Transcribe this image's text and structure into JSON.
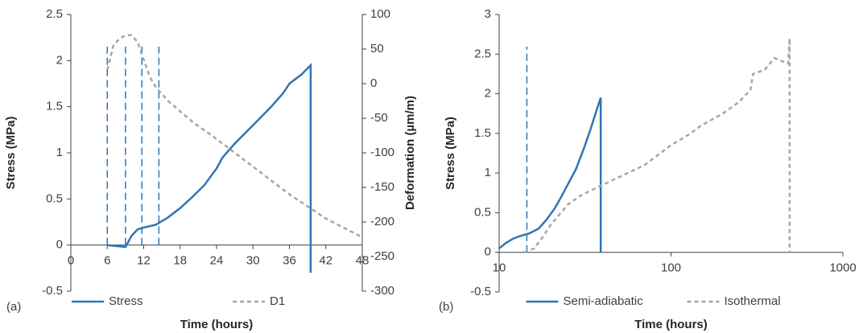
{
  "chart_data": [
    {
      "type": "line",
      "panel_label": "(a)",
      "x_label": "Time (hours)",
      "y_label": "Stress (MPa)",
      "y2_label": "Deformation (µm/m)",
      "xlim": [
        0,
        48
      ],
      "xticks": [
        0,
        6,
        12,
        18,
        24,
        30,
        36,
        42,
        48
      ],
      "ylim": [
        -0.5,
        2.5
      ],
      "yticks": [
        -0.5,
        0,
        0.5,
        1,
        1.5,
        2,
        2.5
      ],
      "y2lim": [
        -300,
        100
      ],
      "y2ticks": [
        -300,
        -250,
        -200,
        -150,
        -100,
        -50,
        0,
        50,
        100
      ],
      "legend": "bottom",
      "vlines": [
        6,
        9,
        11.7,
        14.5
      ],
      "vline_color": "#2e75b6",
      "series": [
        {
          "name": "Stress",
          "color": "#2e75b6",
          "style": "solid",
          "x": [
            6,
            9,
            10,
            11,
            12,
            14,
            16,
            18,
            20,
            22,
            24,
            25,
            27,
            30,
            33,
            35,
            36,
            38,
            39.5,
            39.5
          ],
          "values": [
            0,
            -0.02,
            0.1,
            0.17,
            0.19,
            0.22,
            0.3,
            0.4,
            0.52,
            0.65,
            0.83,
            0.95,
            1.1,
            1.3,
            1.5,
            1.65,
            1.75,
            1.85,
            1.95,
            -0.3
          ]
        },
        {
          "name": "D1",
          "color": "#a6a6a6",
          "style": "dashed",
          "axis": "y2",
          "x": [
            6,
            7,
            8,
            9,
            10,
            11,
            12,
            13,
            14,
            16,
            20,
            24,
            30,
            36,
            42,
            48
          ],
          "values": [
            20,
            55,
            65,
            70,
            70,
            60,
            35,
            10,
            -5,
            -25,
            -55,
            -80,
            -120,
            -160,
            -195,
            -222
          ]
        }
      ]
    },
    {
      "type": "line",
      "panel_label": "(b)",
      "x_label": "Time (hours)",
      "y_label": "Stress (MPa)",
      "log_x": true,
      "xlim": [
        10,
        1000
      ],
      "xticks": [
        10,
        100,
        1000
      ],
      "ylim": [
        -0.5,
        3
      ],
      "yticks": [
        -0.5,
        0,
        0.5,
        1,
        1.5,
        2,
        2.5,
        3
      ],
      "legend": "bottom",
      "vlines": [
        14.5
      ],
      "vline_color": "#2e75b6",
      "series": [
        {
          "name": "Semi-adiabatic",
          "color": "#2e75b6",
          "style": "solid",
          "x": [
            10,
            11,
            12,
            13,
            14,
            15,
            17,
            19,
            21,
            23,
            25,
            28,
            31,
            34,
            37,
            39,
            39
          ],
          "values": [
            0.05,
            0.12,
            0.17,
            0.2,
            0.22,
            0.24,
            0.3,
            0.42,
            0.55,
            0.7,
            0.85,
            1.05,
            1.3,
            1.55,
            1.8,
            1.95,
            0
          ]
        },
        {
          "name": "Isothermal",
          "color": "#a6a6a6",
          "style": "dashed",
          "x": [
            14,
            16,
            18,
            20,
            25,
            30,
            40,
            50,
            70,
            100,
            130,
            150,
            200,
            250,
            290,
            300,
            350,
            400,
            480,
            490,
            490
          ],
          "values": [
            0,
            0.05,
            0.2,
            0.35,
            0.6,
            0.72,
            0.85,
            0.95,
            1.1,
            1.35,
            1.5,
            1.6,
            1.75,
            1.9,
            2.05,
            2.25,
            2.3,
            2.45,
            2.38,
            2.7,
            0
          ]
        }
      ]
    }
  ]
}
